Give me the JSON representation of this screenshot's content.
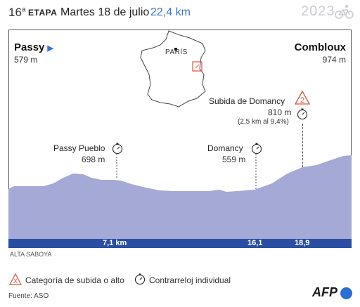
{
  "header": {
    "stage_number": "16",
    "stage_suffix": "a",
    "stage_word": "ETAPA",
    "date": "Martes 18 de julio",
    "distance": "22,4 km",
    "year": "2023"
  },
  "start": {
    "name": "Passy",
    "altitude": "579 m"
  },
  "finish": {
    "name": "Combloux",
    "altitude": "974 m"
  },
  "map": {
    "city": "PARÍS"
  },
  "points": [
    {
      "name": "Passy Pueblo",
      "altitude": "698 m",
      "km": "7,1 km",
      "type": "timing"
    },
    {
      "name": "Domancy",
      "altitude": "559 m",
      "km": "16,1",
      "type": "timing"
    },
    {
      "name": "Subida de Domancy",
      "altitude": "810 m",
      "detail": "(2,5 km al 9,4%)",
      "km": "18,9",
      "type": "climb",
      "category": "2"
    }
  ],
  "region": "ALTA SABOYA",
  "legend": {
    "climb": "Categoría de subida o alto",
    "timing": "Contrarreloj individual"
  },
  "source": "Fuente: ASO",
  "agency": "AFP",
  "colors": {
    "profile_fill": "#a4a9d6",
    "axis_bar": "#2b4ea2",
    "climb_marker": "#d9533a",
    "accent_blue": "#3b73c8"
  }
}
